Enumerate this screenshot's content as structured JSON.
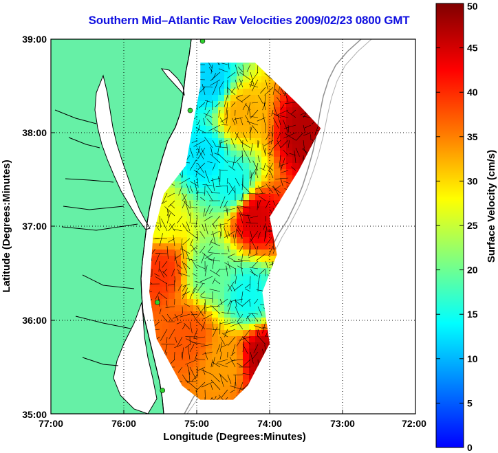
{
  "title": "Southern Mid–Atlantic Raw Velocities 2009/02/23 0800 GMT",
  "axes": {
    "xlabel": "Longitude (Degrees:Minutes)",
    "ylabel": "Latitude (Degrees:Minutes)",
    "x_ticks": [
      "77:00",
      "76:00",
      "75:00",
      "74:00",
      "73:00",
      "72:00"
    ],
    "y_ticks": [
      "35:00",
      "36:00",
      "37:00",
      "38:00",
      "39:00"
    ]
  },
  "colorbar": {
    "label": "Surface Velocity (cm/s)",
    "ticks": [
      "0",
      "5",
      "10",
      "15",
      "20",
      "25",
      "30",
      "35",
      "40",
      "45",
      "50"
    ],
    "min": 0,
    "max": 50,
    "colormap": [
      "#0000ff",
      "#0080ff",
      "#00ffff",
      "#80ff80",
      "#ffff00",
      "#ff8000",
      "#ff0000",
      "#800000"
    ]
  },
  "colors": {
    "land": "#66f0a6",
    "ocean": "#ffffff",
    "coastline": "#000000",
    "bathymetry": "#909090",
    "station": "#2fd12f",
    "title": "#1010e0"
  },
  "chart_data": {
    "type": "map",
    "xlim": [
      -77,
      -72
    ],
    "ylim": [
      35,
      39
    ],
    "grid": true,
    "stations": [
      {
        "lon": -74.92,
        "lat": 38.98
      },
      {
        "lon": -75.09,
        "lat": 38.24
      },
      {
        "lon": -75.54,
        "lat": 36.19
      },
      {
        "lon": -75.47,
        "lat": 35.25
      }
    ],
    "velocity_regions": [
      {
        "lon": -74.8,
        "lat": 38.55,
        "v": 12
      },
      {
        "lon": -74.4,
        "lat": 38.2,
        "v": 33
      },
      {
        "lon": -73.5,
        "lat": 38.0,
        "v": 47
      },
      {
        "lon": -74.9,
        "lat": 37.75,
        "v": 13
      },
      {
        "lon": -74.5,
        "lat": 37.45,
        "v": 15
      },
      {
        "lon": -74.2,
        "lat": 37.1,
        "v": 45
      },
      {
        "lon": -75.5,
        "lat": 37.05,
        "v": 28
      },
      {
        "lon": -75.5,
        "lat": 36.55,
        "v": 40
      },
      {
        "lon": -74.8,
        "lat": 36.5,
        "v": 20
      },
      {
        "lon": -74.3,
        "lat": 36.25,
        "v": 15
      },
      {
        "lon": -75.1,
        "lat": 35.85,
        "v": 38
      },
      {
        "lon": -74.6,
        "lat": 35.55,
        "v": 34
      },
      {
        "lon": -74.1,
        "lat": 35.6,
        "v": 47
      }
    ]
  }
}
